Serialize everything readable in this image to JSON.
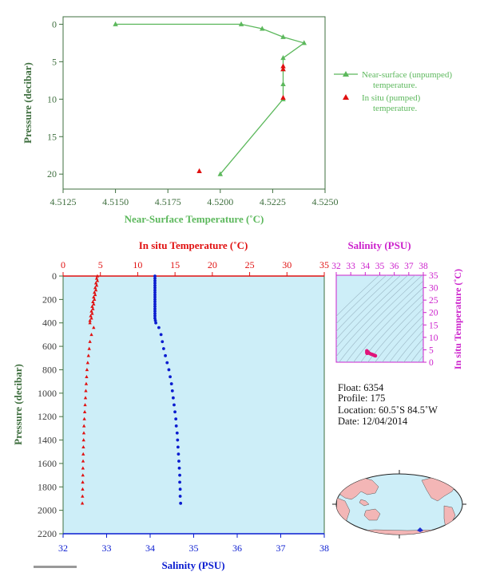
{
  "colors": {
    "green": "#5cb85c",
    "green_text": "#3f6f3f",
    "red": "#e01010",
    "blue": "#0a1cd0",
    "magenta": "#cc22cc",
    "panel_bg": "#cdeef8",
    "tick_text": "#3c3c3c"
  },
  "chart_data": [
    {
      "id": "near-surface",
      "type": "line",
      "xlabel": "Near-Surface Temperature (˚C)",
      "ylabel": "Pressure (decibar)",
      "xlim": [
        4.5125,
        4.525
      ],
      "ylim": [
        22,
        -1
      ],
      "x_ticks": [
        "4.5125",
        "4.5150",
        "4.5175",
        "4.5200",
        "4.5225",
        "4.5250"
      ],
      "y_ticks": [
        "0",
        "5",
        "10",
        "15",
        "20"
      ],
      "legend": [
        {
          "name": "Near-surface (unpumped)",
          "name2": "temperature.",
          "marker": "line-triangle"
        },
        {
          "name": "In situ (pumped)",
          "name2": "temperature.",
          "marker": "triangle"
        }
      ],
      "series": [
        {
          "name": "Near-surface (unpumped) temperature.",
          "color": "#5cb85c",
          "points": [
            [
              4.515,
              0.0
            ],
            [
              4.521,
              0.0
            ],
            [
              4.522,
              0.6
            ],
            [
              4.523,
              1.7
            ],
            [
              4.524,
              2.5
            ],
            [
              4.523,
              4.5
            ],
            [
              4.523,
              6.0
            ],
            [
              4.523,
              8.0
            ],
            [
              4.523,
              10.0
            ],
            [
              4.52,
              20.0
            ]
          ]
        },
        {
          "name": "In situ (pumped) temperature.",
          "color": "#e01010",
          "points": [
            [
              4.523,
              5.6
            ],
            [
              4.523,
              6.0
            ],
            [
              4.523,
              9.8
            ],
            [
              4.519,
              19.6
            ]
          ]
        }
      ]
    },
    {
      "id": "profile",
      "type": "scatter",
      "top_axis_label": "In situ Temperature (˚C)",
      "bottom_axis_label": "Salinity (PSU)",
      "ylabel": "Pressure (decibar)",
      "temp_lim": [
        0,
        35
      ],
      "sal_lim": [
        32,
        38
      ],
      "ylim": [
        0,
        2200
      ],
      "temp_ticks": [
        "0",
        "5",
        "10",
        "15",
        "20",
        "25",
        "30",
        "35"
      ],
      "sal_ticks": [
        "32",
        "33",
        "34",
        "35",
        "36",
        "37",
        "38"
      ],
      "y_ticks": [
        "0",
        "200",
        "400",
        "600",
        "800",
        "1000",
        "1200",
        "1400",
        "1600",
        "1800",
        "2000",
        "2200"
      ],
      "series": [
        {
          "name": "In situ Temperature",
          "color": "#e01010",
          "points": [
            [
              4.6,
              0
            ],
            [
              4.5,
              20
            ],
            [
              4.6,
              40
            ],
            [
              4.4,
              60
            ],
            [
              4.5,
              80
            ],
            [
              4.3,
              100
            ],
            [
              4.4,
              120
            ],
            [
              4.2,
              140
            ],
            [
              4.3,
              160
            ],
            [
              4.1,
              180
            ],
            [
              4.2,
              200
            ],
            [
              4.0,
              220
            ],
            [
              4.1,
              240
            ],
            [
              3.9,
              260
            ],
            [
              4.0,
              280
            ],
            [
              3.8,
              300
            ],
            [
              3.9,
              320
            ],
            [
              3.7,
              340
            ],
            [
              3.8,
              360
            ],
            [
              3.6,
              380
            ],
            [
              3.6,
              400
            ],
            [
              4.1,
              440
            ],
            [
              3.8,
              500
            ],
            [
              3.6,
              560
            ],
            [
              3.5,
              620
            ],
            [
              3.4,
              680
            ],
            [
              3.3,
              740
            ],
            [
              3.2,
              800
            ],
            [
              3.15,
              860
            ],
            [
              3.1,
              920
            ],
            [
              3.05,
              980
            ],
            [
              3.0,
              1040
            ],
            [
              2.95,
              1100
            ],
            [
              2.9,
              1160
            ],
            [
              2.85,
              1220
            ],
            [
              2.8,
              1280
            ],
            [
              2.78,
              1340
            ],
            [
              2.75,
              1400
            ],
            [
              2.72,
              1460
            ],
            [
              2.7,
              1520
            ],
            [
              2.68,
              1580
            ],
            [
              2.66,
              1640
            ],
            [
              2.65,
              1700
            ],
            [
              2.63,
              1760
            ],
            [
              2.62,
              1820
            ],
            [
              2.6,
              1880
            ],
            [
              2.58,
              1940
            ]
          ]
        },
        {
          "name": "Salinity",
          "color": "#0a1cd0",
          "points": [
            [
              34.11,
              0
            ],
            [
              34.11,
              20
            ],
            [
              34.11,
              40
            ],
            [
              34.11,
              60
            ],
            [
              34.11,
              80
            ],
            [
              34.11,
              100
            ],
            [
              34.11,
              120
            ],
            [
              34.11,
              140
            ],
            [
              34.11,
              160
            ],
            [
              34.11,
              180
            ],
            [
              34.11,
              200
            ],
            [
              34.11,
              220
            ],
            [
              34.11,
              240
            ],
            [
              34.11,
              260
            ],
            [
              34.11,
              280
            ],
            [
              34.11,
              300
            ],
            [
              34.11,
              320
            ],
            [
              34.11,
              340
            ],
            [
              34.11,
              360
            ],
            [
              34.12,
              380
            ],
            [
              34.13,
              400
            ],
            [
              34.2,
              440
            ],
            [
              34.25,
              500
            ],
            [
              34.28,
              560
            ],
            [
              34.31,
              620
            ],
            [
              34.35,
              680
            ],
            [
              34.39,
              740
            ],
            [
              34.43,
              800
            ],
            [
              34.46,
              860
            ],
            [
              34.49,
              920
            ],
            [
              34.51,
              980
            ],
            [
              34.53,
              1040
            ],
            [
              34.55,
              1100
            ],
            [
              34.57,
              1160
            ],
            [
              34.59,
              1220
            ],
            [
              34.6,
              1280
            ],
            [
              34.62,
              1340
            ],
            [
              34.63,
              1400
            ],
            [
              34.64,
              1460
            ],
            [
              34.65,
              1520
            ],
            [
              34.66,
              1580
            ],
            [
              34.67,
              1640
            ],
            [
              34.68,
              1700
            ],
            [
              34.68,
              1760
            ],
            [
              34.69,
              1820
            ],
            [
              34.69,
              1880
            ],
            [
              34.7,
              1940
            ]
          ]
        }
      ]
    },
    {
      "id": "ts-diagram",
      "type": "scatter",
      "top_axis_label": "Salinity (PSU)",
      "right_axis_label": "In situ Temperature (˚C)",
      "sal_lim": [
        32,
        38
      ],
      "temp_lim": [
        0,
        35
      ],
      "sal_ticks": [
        "32",
        "33",
        "34",
        "35",
        "36",
        "37",
        "38"
      ],
      "temp_ticks": [
        "0",
        "5",
        "10",
        "15",
        "20",
        "25",
        "30",
        "35"
      ],
      "series": [
        {
          "name": "T-S",
          "color": "#e0147a",
          "points": [
            [
              34.11,
              4.6
            ],
            [
              34.11,
              4.2
            ],
            [
              34.11,
              3.9
            ],
            [
              34.12,
              3.6
            ],
            [
              34.13,
              3.6
            ],
            [
              34.2,
              4.1
            ],
            [
              34.28,
              3.6
            ],
            [
              34.35,
              3.4
            ],
            [
              34.43,
              3.2
            ],
            [
              34.49,
              3.1
            ],
            [
              34.55,
              2.95
            ],
            [
              34.6,
              2.8
            ],
            [
              34.64,
              2.72
            ],
            [
              34.67,
              2.66
            ],
            [
              34.69,
              2.6
            ],
            [
              34.7,
              2.58
            ]
          ]
        }
      ]
    }
  ],
  "info": {
    "float": "Float:  6354",
    "profile": "Profile:  175",
    "location": "Location:  60.5˚S  84.5˚W",
    "date": "Date:  12/04/2014"
  },
  "map": {
    "marker_color": "#2030d0"
  }
}
